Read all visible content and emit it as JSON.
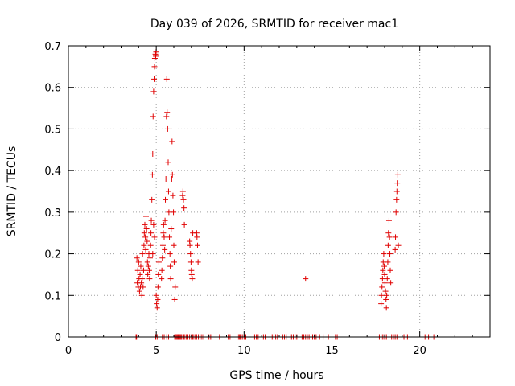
{
  "chart_data": {
    "type": "scatter",
    "title": "Day 039 of 2026, SRMTID for receiver mac1",
    "xlabel": "GPS time / hours",
    "ylabel": "SRMTID / TECUs",
    "xlim": [
      0,
      24
    ],
    "ylim": [
      0,
      0.7
    ],
    "xticks": [
      0,
      5,
      10,
      15,
      20
    ],
    "xtick_labels": [
      "0",
      "5",
      "10",
      "15",
      "20"
    ],
    "yticks": [
      0,
      0.1,
      0.2,
      0.3,
      0.4,
      0.5,
      0.6,
      0.7
    ],
    "ytick_labels": [
      "0",
      "0.1",
      "0.2",
      "0.3",
      "0.4",
      "0.5",
      "0.6",
      "0.7"
    ],
    "grid": true,
    "marker": "plus",
    "color": "#e00000",
    "series": [
      {
        "name": "SRMTID",
        "points": [
          [
            3.9,
            0.19
          ],
          [
            3.92,
            0.13
          ],
          [
            3.95,
            0.16
          ],
          [
            3.98,
            0.12
          ],
          [
            4.0,
            0.18
          ],
          [
            4.02,
            0.14
          ],
          [
            4.05,
            0.11
          ],
          [
            4.08,
            0.15
          ],
          [
            4.1,
            0.12
          ],
          [
            4.12,
            0.17
          ],
          [
            4.15,
            0.13
          ],
          [
            4.18,
            0.1
          ],
          [
            4.2,
            0.14
          ],
          [
            4.22,
            0.2
          ],
          [
            4.25,
            0.12
          ],
          [
            4.28,
            0.16
          ],
          [
            4.3,
            0.22
          ],
          [
            4.32,
            0.25
          ],
          [
            4.35,
            0.27
          ],
          [
            4.38,
            0.24
          ],
          [
            4.4,
            0.21
          ],
          [
            4.42,
            0.29
          ],
          [
            4.45,
            0.26
          ],
          [
            4.48,
            0.23
          ],
          [
            4.5,
            0.18
          ],
          [
            4.52,
            0.15
          ],
          [
            4.55,
            0.17
          ],
          [
            4.58,
            0.2
          ],
          [
            4.6,
            0.16
          ],
          [
            4.62,
            0.14
          ],
          [
            4.65,
            0.19
          ],
          [
            4.68,
            0.22
          ],
          [
            4.7,
            0.25
          ],
          [
            4.72,
            0.28
          ],
          [
            4.75,
            0.33
          ],
          [
            4.78,
            0.39
          ],
          [
            4.8,
            0.44
          ],
          [
            4.82,
            0.53
          ],
          [
            4.85,
            0.59
          ],
          [
            4.88,
            0.62
          ],
          [
            4.9,
            0.65
          ],
          [
            4.92,
            0.67
          ],
          [
            4.95,
            0.68
          ],
          [
            4.97,
            0.675
          ],
          [
            4.99,
            0.685
          ],
          [
            4.8,
            0.2
          ],
          [
            4.85,
            0.27
          ],
          [
            4.9,
            0.24
          ],
          [
            5.0,
            0.1
          ],
          [
            5.02,
            0.08
          ],
          [
            5.05,
            0.07
          ],
          [
            5.08,
            0.09
          ],
          [
            5.1,
            0.12
          ],
          [
            5.12,
            0.15
          ],
          [
            5.15,
            0.18
          ],
          [
            5.3,
            0.14
          ],
          [
            5.32,
            0.16
          ],
          [
            5.35,
            0.19
          ],
          [
            5.38,
            0.22
          ],
          [
            5.4,
            0.25
          ],
          [
            5.42,
            0.27
          ],
          [
            5.45,
            0.24
          ],
          [
            5.48,
            0.21
          ],
          [
            5.5,
            0.28
          ],
          [
            5.52,
            0.33
          ],
          [
            5.55,
            0.38
          ],
          [
            5.58,
            0.53
          ],
          [
            5.6,
            0.62
          ],
          [
            5.62,
            0.54
          ],
          [
            5.65,
            0.5
          ],
          [
            5.68,
            0.42
          ],
          [
            5.7,
            0.35
          ],
          [
            5.72,
            0.3
          ],
          [
            5.75,
            0.24
          ],
          [
            5.78,
            0.2
          ],
          [
            5.8,
            0.17
          ],
          [
            5.82,
            0.14
          ],
          [
            5.85,
            0.26
          ],
          [
            5.88,
            0.38
          ],
          [
            5.9,
            0.47
          ],
          [
            5.92,
            0.39
          ],
          [
            5.95,
            0.34
          ],
          [
            5.98,
            0.3
          ],
          [
            6.0,
            0.22
          ],
          [
            6.02,
            0.18
          ],
          [
            6.05,
            0.09
          ],
          [
            6.08,
            0.12
          ],
          [
            6.5,
            0.34
          ],
          [
            6.52,
            0.35
          ],
          [
            6.55,
            0.33
          ],
          [
            6.58,
            0.31
          ],
          [
            6.6,
            0.27
          ],
          [
            6.9,
            0.23
          ],
          [
            6.92,
            0.22
          ],
          [
            6.95,
            0.2
          ],
          [
            6.98,
            0.18
          ],
          [
            7.0,
            0.16
          ],
          [
            7.02,
            0.15
          ],
          [
            7.05,
            0.14
          ],
          [
            7.08,
            0.25
          ],
          [
            7.3,
            0.25
          ],
          [
            7.32,
            0.24
          ],
          [
            7.35,
            0.22
          ],
          [
            7.38,
            0.18
          ],
          [
            13.5,
            0.14
          ],
          [
            17.8,
            0.08
          ],
          [
            17.82,
            0.1
          ],
          [
            17.85,
            0.12
          ],
          [
            17.88,
            0.14
          ],
          [
            17.9,
            0.16
          ],
          [
            17.92,
            0.18
          ],
          [
            17.95,
            0.2
          ],
          [
            17.98,
            0.17
          ],
          [
            18.0,
            0.15
          ],
          [
            18.02,
            0.13
          ],
          [
            18.05,
            0.11
          ],
          [
            18.08,
            0.09
          ],
          [
            18.1,
            0.07
          ],
          [
            18.12,
            0.1
          ],
          [
            18.15,
            0.14
          ],
          [
            18.18,
            0.18
          ],
          [
            18.2,
            0.22
          ],
          [
            18.22,
            0.25
          ],
          [
            18.25,
            0.28
          ],
          [
            18.28,
            0.24
          ],
          [
            18.3,
            0.2
          ],
          [
            18.32,
            0.16
          ],
          [
            18.35,
            0.13
          ],
          [
            18.6,
            0.21
          ],
          [
            18.62,
            0.24
          ],
          [
            18.65,
            0.3
          ],
          [
            18.68,
            0.33
          ],
          [
            18.7,
            0.35
          ],
          [
            18.72,
            0.37
          ],
          [
            18.75,
            0.39
          ],
          [
            18.78,
            0.22
          ]
        ],
        "zero_times": [
          3.85,
          3.88,
          4.97,
          5.05,
          5.35,
          5.45,
          5.6,
          5.7,
          6.05,
          6.1,
          6.15,
          6.2,
          6.25,
          6.3,
          6.35,
          6.4,
          6.45,
          6.55,
          6.6,
          6.7,
          6.8,
          6.9,
          7.0,
          7.05,
          7.1,
          7.2,
          7.3,
          7.4,
          7.5,
          7.6,
          7.7,
          8.0,
          8.1,
          8.6,
          9.1,
          9.2,
          9.6,
          9.7,
          9.75,
          9.8,
          9.9,
          10.0,
          10.1,
          10.6,
          10.7,
          10.8,
          11.1,
          11.2,
          11.6,
          11.7,
          11.8,
          11.9,
          12.2,
          12.3,
          12.4,
          12.7,
          12.8,
          12.9,
          13.0,
          13.3,
          13.4,
          13.5,
          13.6,
          13.7,
          13.9,
          14.0,
          14.1,
          14.3,
          14.5,
          14.8,
          15.0,
          15.2,
          15.3,
          17.7,
          17.8,
          17.9,
          18.0,
          18.1,
          18.4,
          18.5,
          18.6,
          18.7,
          19.1,
          19.3,
          19.9,
          20.3,
          20.5,
          20.8
        ]
      }
    ]
  }
}
